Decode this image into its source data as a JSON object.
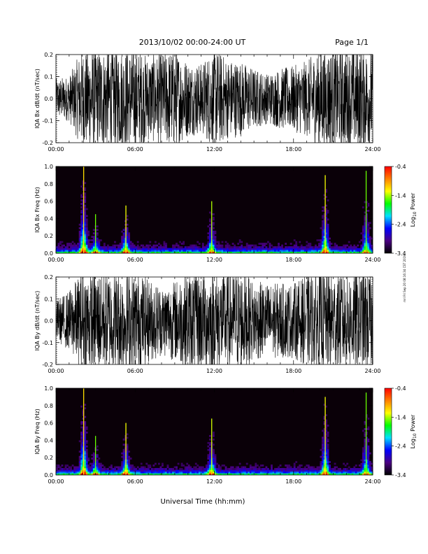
{
  "header": {
    "title": "2013/10/02  00:00-24:00 UT",
    "page": "Page 1/1"
  },
  "footer": {
    "xlabel": "Universal Time (hh:mm)"
  },
  "side_stamp": "mri Fri Sep 20 08:16:34 CST 2019",
  "colors": {
    "trace": "#000000",
    "spectrogram_background": "#0a0008",
    "colorbar_stops": [
      "#000000",
      "#4b0082",
      "#0000ff",
      "#00e0ff",
      "#00ff00",
      "#ffff00",
      "#ff8000",
      "#ff0000"
    ]
  },
  "chart_data": [
    {
      "type": "line",
      "panel_id": "bx-dbdt",
      "ylabel": "IQA Bx dB/dt (nT/sec)",
      "ylim": [
        -0.2,
        0.2
      ],
      "yticks": [
        -0.2,
        -0.1,
        0.0,
        0.1,
        0.2
      ],
      "ytick_labels": [
        "-0.2",
        "-0.1",
        "0.0",
        "0.1",
        "0.2"
      ],
      "xlim": [
        "00:00",
        "24:00"
      ],
      "xticks": [
        "00:00",
        "06:00",
        "12:00",
        "18:00",
        "24:00"
      ],
      "series": [
        {
          "x_hours": [
            0,
            1,
            2,
            3,
            4,
            5,
            6,
            7,
            8,
            9,
            10,
            11,
            12,
            13,
            14,
            15,
            16,
            17,
            18,
            19,
            20,
            21,
            22,
            23,
            24
          ],
          "envelope": [
            0.08,
            0.09,
            0.2,
            0.2,
            0.2,
            0.2,
            0.2,
            0.17,
            0.18,
            0.2,
            0.15,
            0.14,
            0.2,
            0.16,
            0.15,
            0.12,
            0.1,
            0.12,
            0.13,
            0.15,
            0.2,
            0.2,
            0.2,
            0.2,
            0.2
          ]
        }
      ]
    },
    {
      "type": "heatmap",
      "panel_id": "bx-freq",
      "ylabel": "IQA Bx Freq (Hz)",
      "ylim": [
        0.0,
        1.0
      ],
      "yticks": [
        0.0,
        0.2,
        0.4,
        0.6,
        0.8,
        1.0
      ],
      "ytick_labels": [
        "0.0",
        "0.2",
        "0.4",
        "0.6",
        "0.8",
        "1.0"
      ],
      "xlim": [
        "00:00",
        "24:00"
      ],
      "xticks": [
        "00:00",
        "06:00",
        "12:00",
        "18:00",
        "24:00"
      ],
      "colorbar": {
        "label": "Log10 Power",
        "label_main": "Log",
        "label_sub": "10",
        "label_rest": " Power",
        "range": [
          -3.4,
          -0.4
        ],
        "ticks": [
          -0.4,
          -1.4,
          -2.4,
          -3.4
        ],
        "tick_labels": [
          "-0.4",
          "-1.4",
          "-2.4",
          "-3.4"
        ]
      },
      "bursts": [
        {
          "x_hours": 2.1,
          "max_freq": 1.0,
          "intensity": 1.0
        },
        {
          "x_hours": 3.0,
          "max_freq": 0.45,
          "intensity": 0.7
        },
        {
          "x_hours": 5.3,
          "max_freq": 0.55,
          "intensity": 0.9
        },
        {
          "x_hours": 11.8,
          "max_freq": 0.6,
          "intensity": 0.8
        },
        {
          "x_hours": 20.4,
          "max_freq": 0.9,
          "intensity": 0.9
        },
        {
          "x_hours": 23.5,
          "max_freq": 0.95,
          "intensity": 0.7
        }
      ]
    },
    {
      "type": "line",
      "panel_id": "by-dbdt",
      "ylabel": "IQA By dB/dt (nT/sec)",
      "ylim": [
        -0.2,
        0.2
      ],
      "yticks": [
        -0.2,
        -0.1,
        0.0,
        0.1,
        0.2
      ],
      "ytick_labels": [
        "-0.2",
        "-0.1",
        "0.0",
        "0.1",
        "0.2"
      ],
      "xlim": [
        "00:00",
        "24:00"
      ],
      "xticks": [
        "00:00",
        "06:00",
        "12:00",
        "18:00",
        "24:00"
      ],
      "series": [
        {
          "x_hours": [
            0,
            1,
            2,
            3,
            4,
            5,
            6,
            7,
            8,
            9,
            10,
            11,
            12,
            13,
            14,
            15,
            16,
            17,
            18,
            19,
            20,
            21,
            22,
            23,
            24
          ],
          "envelope": [
            0.08,
            0.12,
            0.2,
            0.2,
            0.2,
            0.2,
            0.2,
            0.17,
            0.14,
            0.16,
            0.2,
            0.2,
            0.2,
            0.2,
            0.2,
            0.16,
            0.15,
            0.15,
            0.15,
            0.18,
            0.2,
            0.2,
            0.2,
            0.2,
            0.2
          ]
        }
      ]
    },
    {
      "type": "heatmap",
      "panel_id": "by-freq",
      "ylabel": "IQA By Freq (Hz)",
      "ylim": [
        0.0,
        1.0
      ],
      "yticks": [
        0.0,
        0.2,
        0.4,
        0.6,
        0.8,
        1.0
      ],
      "ytick_labels": [
        "0.0",
        "0.2",
        "0.4",
        "0.6",
        "0.8",
        "1.0"
      ],
      "xlim": [
        "00:00",
        "24:00"
      ],
      "xticks": [
        "00:00",
        "06:00",
        "12:00",
        "18:00",
        "24:00"
      ],
      "colorbar": {
        "label": "Log10 Power",
        "label_main": "Log",
        "label_sub": "10",
        "label_rest": " Power",
        "range": [
          -3.4,
          -0.4
        ],
        "ticks": [
          -0.4,
          -1.4,
          -2.4,
          -3.4
        ],
        "tick_labels": [
          "-0.4",
          "-1.4",
          "-2.4",
          "-3.4"
        ]
      },
      "bursts": [
        {
          "x_hours": 2.1,
          "max_freq": 1.0,
          "intensity": 1.0
        },
        {
          "x_hours": 3.0,
          "max_freq": 0.45,
          "intensity": 0.7
        },
        {
          "x_hours": 5.3,
          "max_freq": 0.6,
          "intensity": 0.9
        },
        {
          "x_hours": 11.8,
          "max_freq": 0.65,
          "intensity": 0.85
        },
        {
          "x_hours": 20.4,
          "max_freq": 0.9,
          "intensity": 0.9
        },
        {
          "x_hours": 23.5,
          "max_freq": 0.95,
          "intensity": 0.7
        }
      ]
    }
  ]
}
